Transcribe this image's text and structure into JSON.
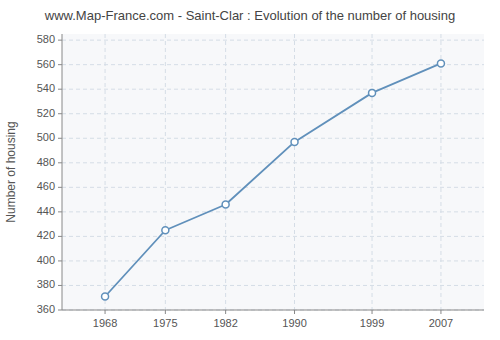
{
  "chart_data": {
    "type": "line",
    "title": "www.Map-France.com - Saint-Clar : Evolution of the number of housing",
    "y_label": "Number of housing",
    "x": [
      1968,
      1975,
      1982,
      1990,
      1999,
      2007
    ],
    "values": [
      371,
      425,
      446,
      497,
      537,
      561
    ],
    "color": "#6090bb",
    "marker": "circle",
    "xlim": [
      1963,
      2012
    ],
    "xticks": [
      1968,
      1975,
      1982,
      1990,
      1999,
      2007
    ],
    "ylim": [
      360,
      585
    ],
    "yticks": [
      360,
      380,
      400,
      420,
      440,
      460,
      480,
      500,
      520,
      540,
      560,
      580
    ],
    "grid": true
  }
}
